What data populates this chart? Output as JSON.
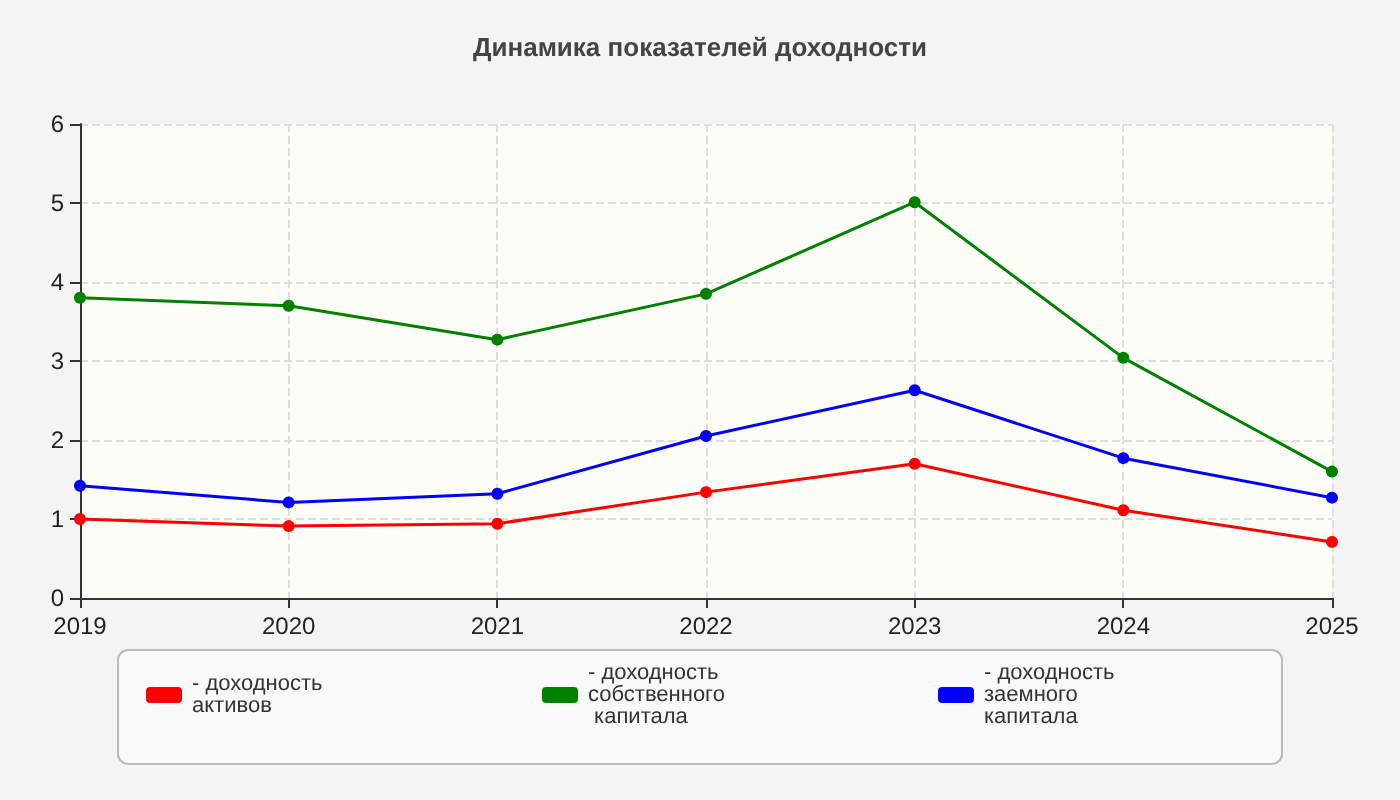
{
  "chart_data": {
    "type": "line",
    "title": "Динамика показателей доходности",
    "categories": [
      "2019",
      "2020",
      "2021",
      "2022",
      "2023",
      "2024",
      "2025"
    ],
    "series": [
      {
        "name": "- доходность активов",
        "color": "#ff0000",
        "values": [
          1.0,
          0.91,
          0.94,
          1.34,
          1.7,
          1.11,
          0.71
        ]
      },
      {
        "name": "- доходность собственного капитала",
        "color": "#008000",
        "values": [
          3.8,
          3.7,
          3.27,
          3.85,
          5.01,
          3.04,
          1.6
        ]
      },
      {
        "name": "- доходность заемного капитала",
        "color": "#0000ff",
        "values": [
          1.42,
          1.21,
          1.32,
          2.05,
          2.63,
          1.77,
          1.27
        ]
      }
    ],
    "ylim": [
      0,
      6
    ],
    "yticks": [
      0,
      1,
      2,
      3,
      4,
      5,
      6
    ],
    "grid": true,
    "legend": "bottom",
    "marker": "circle",
    "line_style": "solid"
  }
}
